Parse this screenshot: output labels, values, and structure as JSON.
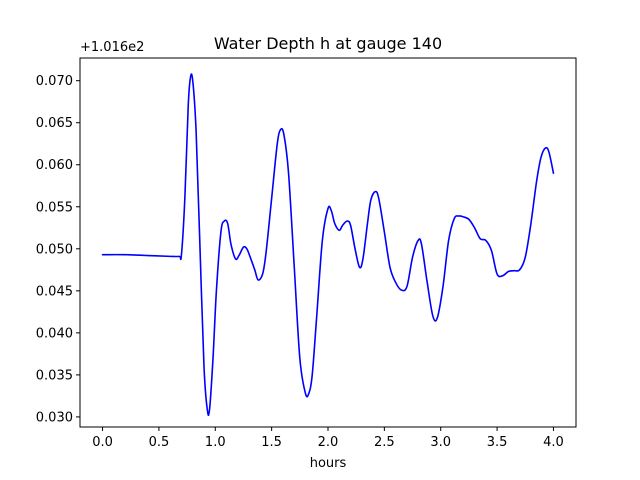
{
  "chart_data": {
    "type": "line",
    "title": "Water Depth h at gauge 140",
    "xlabel": "hours",
    "ylabel": "",
    "y_offset_label": "+1.016e2",
    "xlim": [
      -0.2,
      4.2
    ],
    "ylim": [
      0.0288,
      0.0727
    ],
    "x_ticks": [
      0.0,
      0.5,
      1.0,
      1.5,
      2.0,
      2.5,
      3.0,
      3.5,
      4.0
    ],
    "x_tick_labels": [
      "0.0",
      "0.5",
      "1.0",
      "1.5",
      "2.0",
      "2.5",
      "3.0",
      "3.5",
      "4.0"
    ],
    "y_ticks": [
      0.03,
      0.035,
      0.04,
      0.045,
      0.05,
      0.055,
      0.06,
      0.065,
      0.07
    ],
    "y_tick_labels": [
      "0.030",
      "0.035",
      "0.040",
      "0.045",
      "0.050",
      "0.055",
      "0.060",
      "0.065",
      "0.070"
    ],
    "grid": false,
    "series": [
      {
        "color": "#0000ff",
        "x": [
          0.0,
          0.2,
          0.4,
          0.6,
          0.68,
          0.7,
          0.73,
          0.76,
          0.78,
          0.8,
          0.83,
          0.86,
          0.9,
          0.93,
          0.95,
          0.98,
          1.01,
          1.05,
          1.08,
          1.11,
          1.14,
          1.18,
          1.21,
          1.25,
          1.28,
          1.31,
          1.35,
          1.38,
          1.42,
          1.45,
          1.5,
          1.55,
          1.58,
          1.61,
          1.65,
          1.7,
          1.75,
          1.8,
          1.83,
          1.86,
          1.9,
          1.95,
          2.0,
          2.03,
          2.06,
          2.1,
          2.13,
          2.17,
          2.2,
          2.24,
          2.28,
          2.31,
          2.35,
          2.38,
          2.42,
          2.45,
          2.5,
          2.55,
          2.6,
          2.65,
          2.7,
          2.75,
          2.8,
          2.83,
          2.88,
          2.93,
          2.97,
          3.02,
          3.07,
          3.12,
          3.16,
          3.2,
          3.25,
          3.3,
          3.35,
          3.4,
          3.45,
          3.5,
          3.55,
          3.6,
          3.65,
          3.7,
          3.75,
          3.8,
          3.85,
          3.89,
          3.93,
          3.96,
          4.0
        ],
        "y": [
          0.0493,
          0.0493,
          0.0492,
          0.0491,
          0.0491,
          0.0493,
          0.056,
          0.067,
          0.0704,
          0.07,
          0.064,
          0.052,
          0.036,
          0.0308,
          0.031,
          0.037,
          0.045,
          0.052,
          0.0533,
          0.053,
          0.0505,
          0.0488,
          0.0492,
          0.0502,
          0.05,
          0.049,
          0.0475,
          0.0463,
          0.047,
          0.0495,
          0.056,
          0.0625,
          0.0642,
          0.0635,
          0.059,
          0.048,
          0.037,
          0.0328,
          0.0328,
          0.035,
          0.042,
          0.051,
          0.0548,
          0.0545,
          0.053,
          0.0522,
          0.0528,
          0.0533,
          0.0528,
          0.05,
          0.0478,
          0.0488,
          0.053,
          0.0558,
          0.0568,
          0.056,
          0.052,
          0.0478,
          0.046,
          0.0451,
          0.0455,
          0.049,
          0.051,
          0.0505,
          0.046,
          0.042,
          0.0418,
          0.0455,
          0.051,
          0.0536,
          0.0539,
          0.0538,
          0.0535,
          0.0525,
          0.0512,
          0.051,
          0.0498,
          0.047,
          0.0468,
          0.0473,
          0.0474,
          0.0475,
          0.049,
          0.053,
          0.058,
          0.0609,
          0.062,
          0.0615,
          0.059
        ]
      }
    ]
  }
}
